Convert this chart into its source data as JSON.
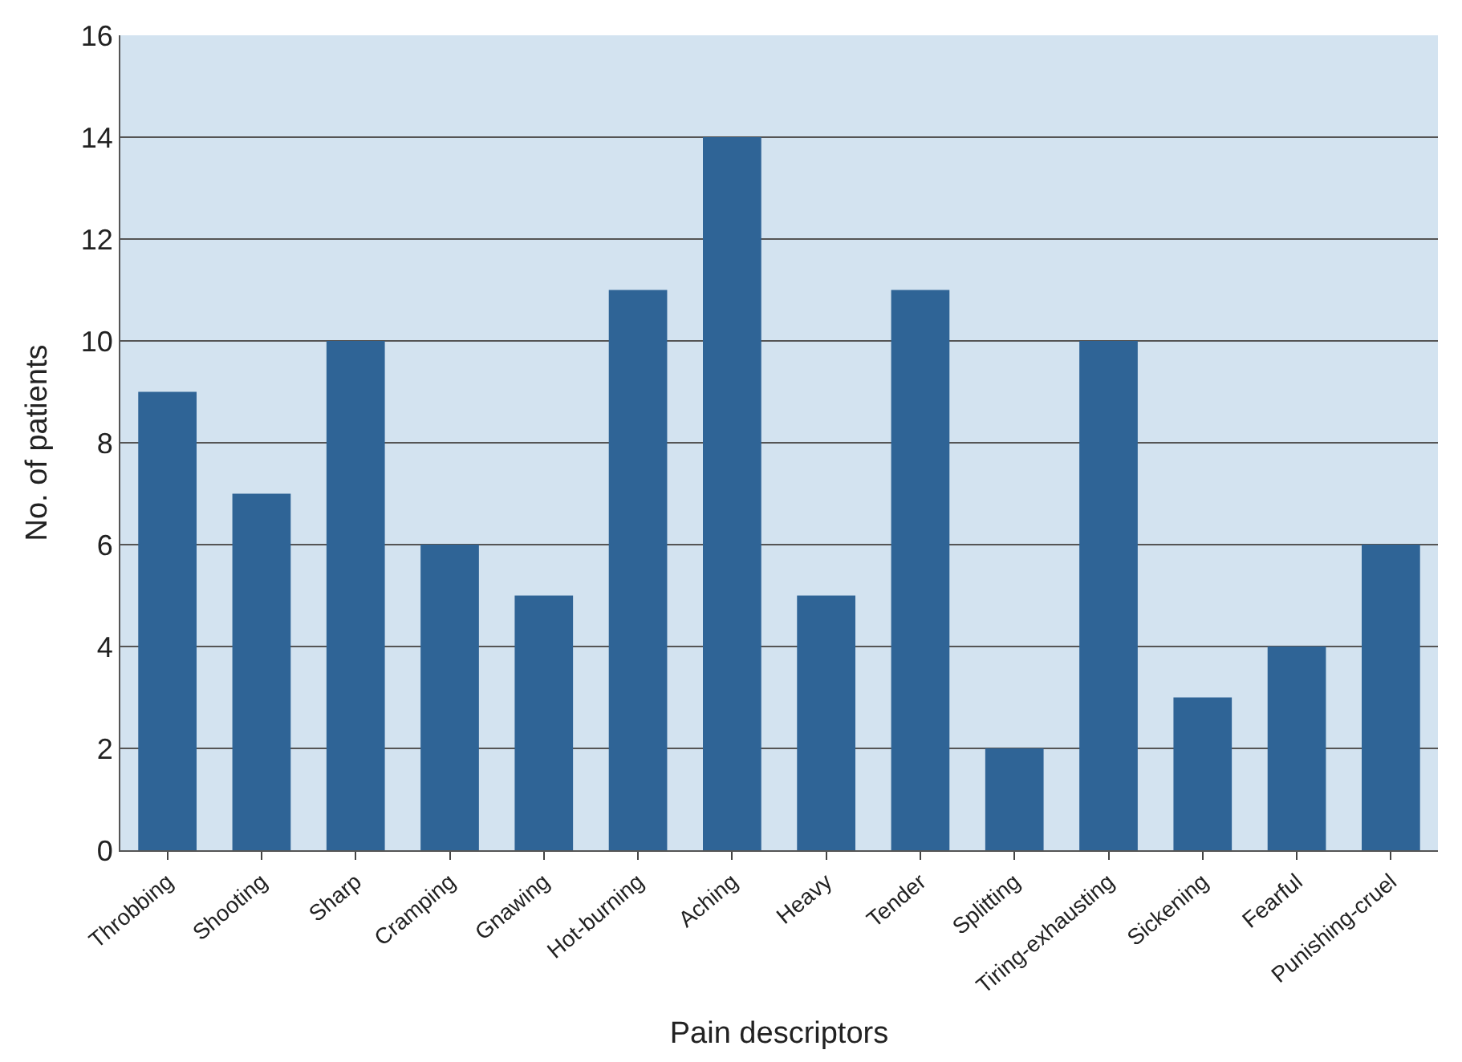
{
  "chart_data": {
    "type": "bar",
    "xlabel": "Pain descriptors",
    "ylabel": "No. of patients",
    "categories": [
      "Throbbing",
      "Shooting",
      "Sharp",
      "Cramping",
      "Gnawing",
      "Hot-burning",
      "Aching",
      "Heavy",
      "Tender",
      "Splitting",
      "Tiring-exhausting",
      "Sickening",
      "Fearful",
      "Punishing-cruel"
    ],
    "values": [
      9,
      7,
      10,
      6,
      5,
      11,
      14,
      5,
      11,
      2,
      10,
      3,
      4,
      6
    ],
    "color": "#2f6496",
    "ylim": [
      0,
      16
    ],
    "yticks": [
      0,
      2,
      4,
      6,
      8,
      10,
      12,
      14,
      16
    ],
    "grid": "y"
  }
}
